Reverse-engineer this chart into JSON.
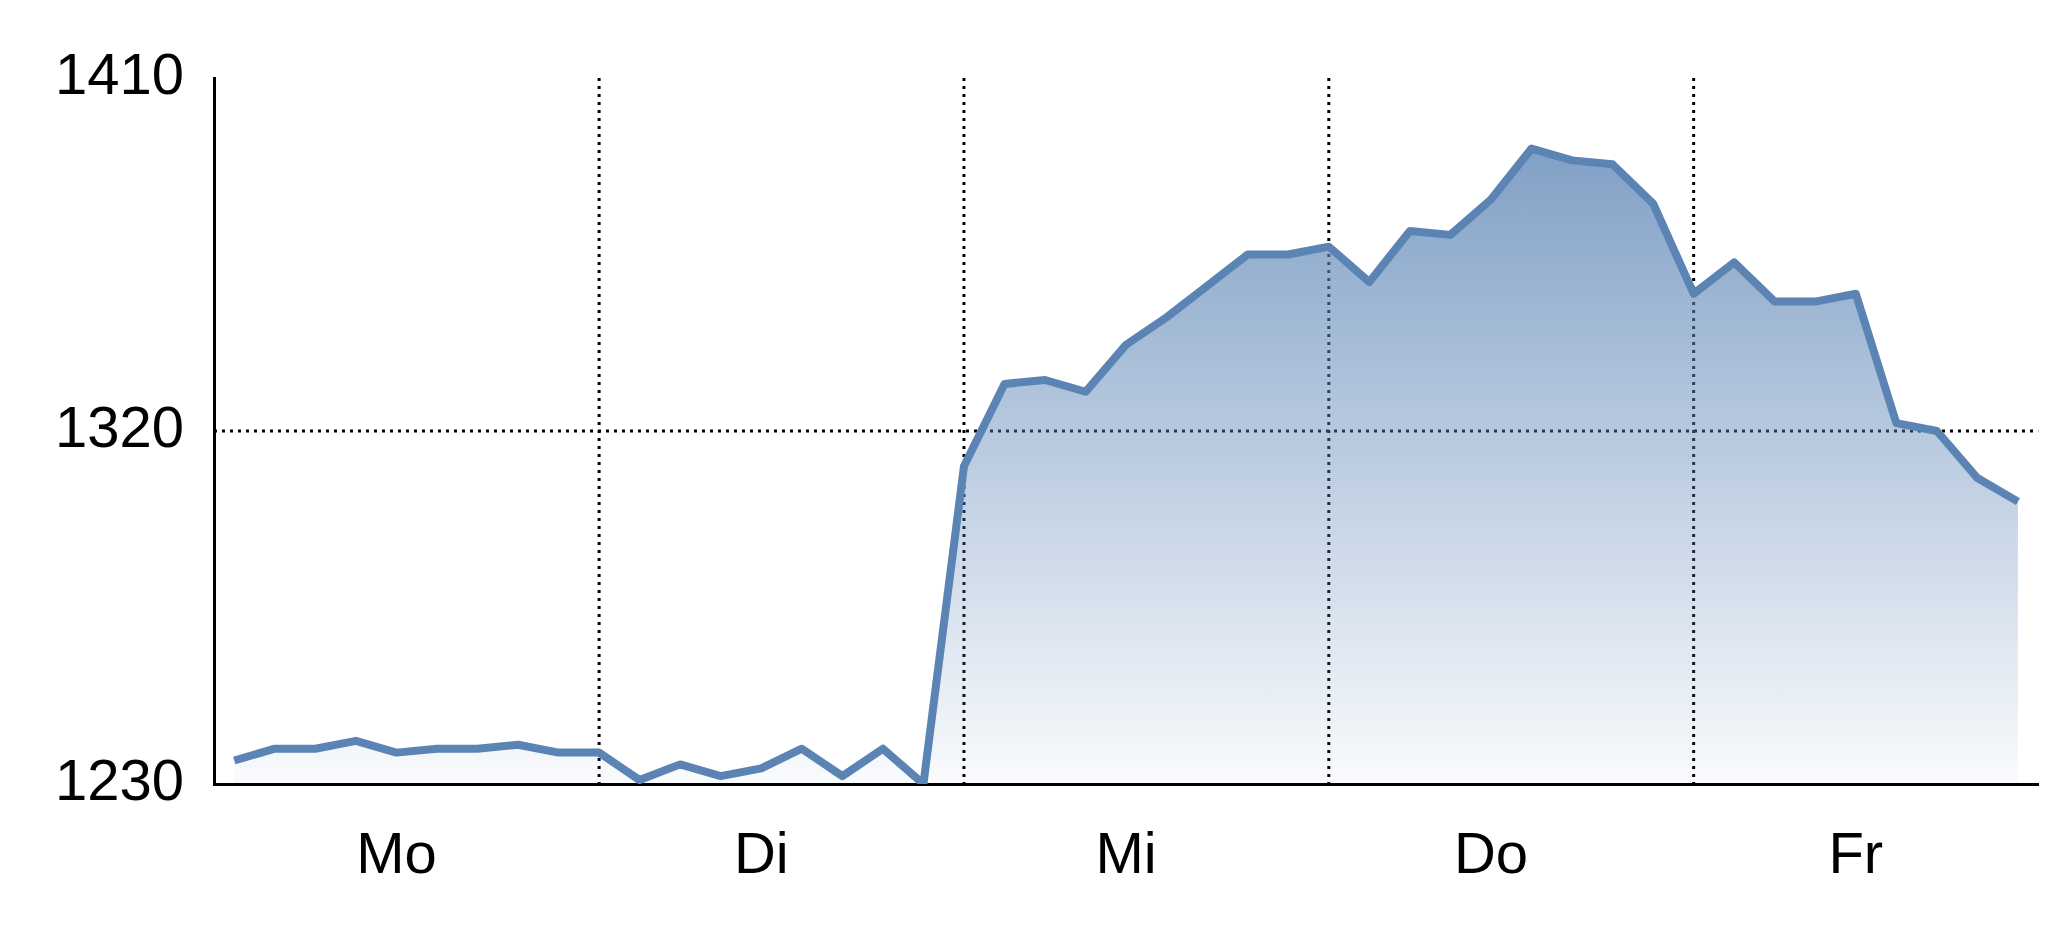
{
  "chart_data": {
    "type": "area",
    "marker": "none",
    "line_style": "solid",
    "grid": "x",
    "legend": false,
    "categories": [
      null,
      null,
      null,
      null,
      "Mo",
      null,
      null,
      null,
      null,
      null,
      null,
      null,
      null,
      "Di",
      null,
      null,
      null,
      null,
      null,
      null,
      null,
      null,
      "Mi",
      null,
      null,
      null,
      null,
      null,
      null,
      null,
      null,
      "Do",
      null,
      null,
      null,
      null,
      null,
      null,
      null,
      null,
      "Fr",
      null,
      null,
      null,
      null
    ],
    "ylim": [
      1230,
      1410
    ],
    "yticks": [
      1230,
      1320,
      1410
    ],
    "series": [
      {
        "color": "#5b84b5",
        "values": [
          1236,
          1239,
          1239,
          1241,
          1238,
          1239,
          1239,
          1240,
          1238,
          1238,
          1231,
          1235,
          1232,
          1234,
          1239,
          1232,
          1239,
          1230,
          1311,
          1332,
          1333,
          1330,
          1342,
          1349,
          1357,
          1365,
          1365,
          1367,
          1358,
          1371,
          1370,
          1379,
          1392,
          1389,
          1388,
          1378,
          1355,
          1363,
          1353,
          1353,
          1355,
          1322,
          1320,
          1308,
          1302
        ]
      }
    ],
    "ref_lines": [
      {
        "axis": "y",
        "value": 1320,
        "line_style": "dotted",
        "color": "#000000"
      }
    ]
  }
}
